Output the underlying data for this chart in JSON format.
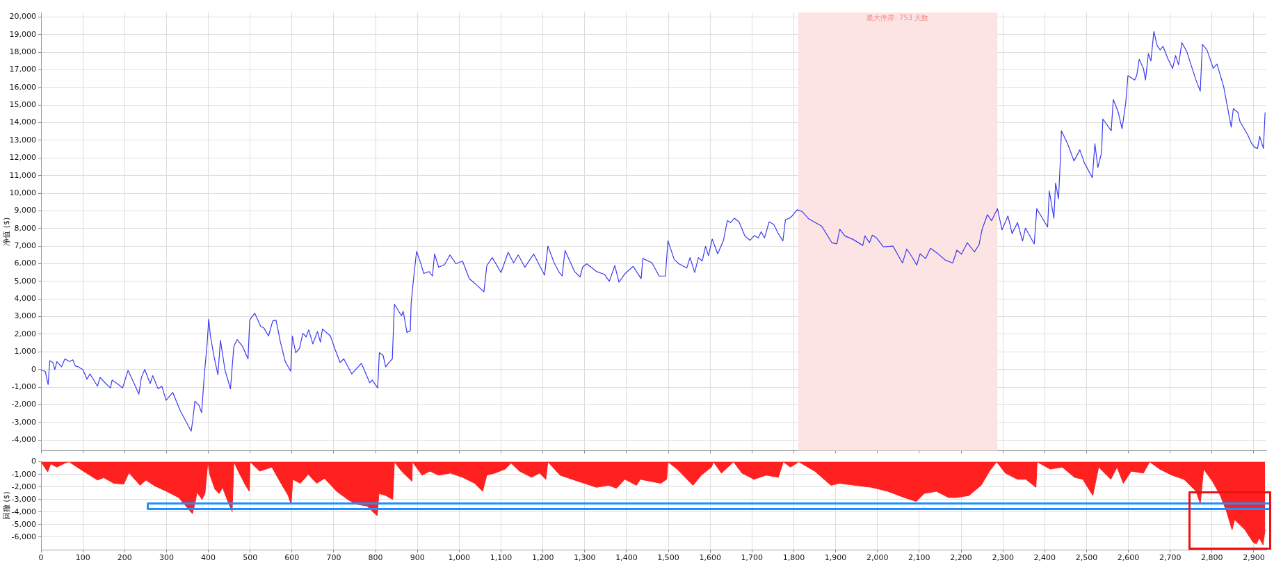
{
  "chart_data": [
    {
      "type": "line",
      "ylabel": "净值 ($)",
      "color": "#3a3af0",
      "marker": "none",
      "line_style": "solid",
      "legend": false,
      "grid": true,
      "tick_labels": "y",
      "x": [
        0,
        10,
        17,
        21,
        28,
        33,
        38,
        49,
        57,
        68,
        76,
        82,
        89,
        100,
        110,
        117,
        135,
        141,
        153,
        166,
        170,
        185,
        195,
        208,
        219,
        234,
        240,
        248,
        261,
        267,
        280,
        289,
        299,
        315,
        333,
        359,
        363,
        368,
        378,
        384,
        391,
        397,
        401,
        405,
        414,
        423,
        429,
        440,
        453,
        461,
        469,
        482,
        495,
        499,
        511,
        525,
        533,
        544,
        554,
        562,
        572,
        584,
        597,
        601,
        609,
        618,
        626,
        634,
        640,
        650,
        661,
        668,
        673,
        692,
        703,
        715,
        724,
        743,
        766,
        786,
        792,
        805,
        809,
        818,
        824,
        832,
        840,
        845,
        854,
        862,
        866,
        875,
        883,
        885,
        891,
        898,
        909,
        915,
        928,
        936,
        941,
        951,
        965,
        978,
        992,
        1008,
        1024,
        1039,
        1059,
        1066,
        1079,
        1100,
        1117,
        1130,
        1141,
        1157,
        1178,
        1204,
        1212,
        1227,
        1238,
        1246,
        1253,
        1276,
        1289,
        1295,
        1305,
        1329,
        1347,
        1359,
        1372,
        1382,
        1397,
        1416,
        1435,
        1439,
        1461,
        1478,
        1493,
        1499,
        1514,
        1525,
        1544,
        1552,
        1563,
        1572,
        1581,
        1589,
        1596,
        1605,
        1618,
        1632,
        1641,
        1649,
        1658,
        1669,
        1683,
        1695,
        1706,
        1715,
        1722,
        1730,
        1741,
        1752,
        1762,
        1774,
        1780,
        1790,
        1796,
        1808,
        1820,
        1836,
        1867,
        1891,
        1903,
        1910,
        1922,
        1942,
        1965,
        1970,
        1981,
        1988,
        1998,
        2014,
        2037,
        2060,
        2070,
        2083,
        2094,
        2102,
        2115,
        2127,
        2144,
        2162,
        2180,
        2190,
        2201,
        2215,
        2232,
        2243,
        2250,
        2263,
        2273,
        2287,
        2298,
        2312,
        2322,
        2335,
        2347,
        2354,
        2375,
        2381,
        2407,
        2411,
        2422,
        2426,
        2433,
        2437,
        2440,
        2455,
        2470,
        2484,
        2495,
        2514,
        2520,
        2527,
        2536,
        2539,
        2559,
        2564,
        2576,
        2585,
        2594,
        2599,
        2615,
        2620,
        2626,
        2636,
        2641,
        2648,
        2654,
        2661,
        2669,
        2676,
        2683,
        2695,
        2706,
        2713,
        2720,
        2728,
        2740,
        2761,
        2772,
        2777,
        2788,
        2803,
        2812,
        2828,
        2846,
        2851,
        2862,
        2867,
        2885,
        2895,
        2902,
        2909,
        2914,
        2923,
        2927
      ],
      "values": [
        -50,
        -100,
        -850,
        500,
        400,
        0,
        450,
        150,
        600,
        450,
        550,
        200,
        150,
        0,
        -550,
        -250,
        -950,
        -450,
        -750,
        -1050,
        -600,
        -850,
        -1050,
        -50,
        -600,
        -1400,
        -450,
        0,
        -800,
        -350,
        -1100,
        -950,
        -1750,
        -1300,
        -2350,
        -3500,
        -2850,
        -1800,
        -2050,
        -2450,
        -150,
        1400,
        2850,
        1900,
        700,
        -300,
        1650,
        -50,
        -1100,
        1300,
        1700,
        1300,
        600,
        2800,
        3200,
        2450,
        2350,
        1900,
        2750,
        2800,
        1600,
        450,
        -100,
        1900,
        950,
        1200,
        2050,
        1850,
        2250,
        1450,
        2150,
        1550,
        2300,
        1900,
        1150,
        400,
        600,
        -250,
        350,
        -750,
        -600,
        -1050,
        950,
        800,
        150,
        400,
        600,
        3700,
        3350,
        3050,
        3300,
        2100,
        2200,
        3750,
        5200,
        6700,
        5950,
        5450,
        5550,
        5300,
        6550,
        5800,
        5950,
        6500,
        6000,
        6150,
        5150,
        4850,
        4400,
        5900,
        6350,
        5500,
        6650,
        6050,
        6500,
        5800,
        6550,
        5350,
        7000,
        6050,
        5550,
        5300,
        6750,
        5550,
        5250,
        5800,
        6000,
        5550,
        5400,
        5000,
        5900,
        4950,
        5450,
        5850,
        5150,
        6300,
        6050,
        5300,
        5300,
        7300,
        6250,
        6000,
        5750,
        6350,
        5500,
        6350,
        6150,
        6980,
        6460,
        7400,
        6560,
        7330,
        8440,
        8330,
        8580,
        8375,
        7580,
        7330,
        7600,
        7460,
        7810,
        7460,
        8375,
        8230,
        7750,
        7290,
        8500,
        8580,
        8710,
        9060,
        8960,
        8540,
        8125,
        7190,
        7125,
        7960,
        7580,
        7375,
        7040,
        7580,
        7190,
        7625,
        7460,
        6960,
        7000,
        6040,
        6830,
        6375,
        5920,
        6560,
        6290,
        6875,
        6580,
        6210,
        6040,
        6770,
        6540,
        7190,
        6670,
        7080,
        7920,
        8790,
        8440,
        9125,
        7920,
        8710,
        7710,
        8330,
        7290,
        8020,
        7125,
        9125,
        8080,
        10125,
        8580,
        10580,
        9690,
        11670,
        13540,
        12790,
        11830,
        12460,
        11710,
        10875,
        12810,
        11460,
        12290,
        14210,
        13540,
        15310,
        14580,
        13650,
        15170,
        16670,
        16420,
        16670,
        17600,
        17080,
        16420,
        17920,
        17500,
        19170,
        18375,
        18125,
        18330,
        17600,
        17080,
        17810,
        17290,
        18540,
        18020,
        16460,
        15790,
        18440,
        18125,
        17080,
        17330,
        16040,
        13750,
        14790,
        14580,
        14060,
        13330,
        12810,
        12600,
        12540,
        13230,
        12540,
        14580
      ],
      "xlim": [
        0,
        2930
      ],
      "xticks": [
        0,
        100,
        200,
        300,
        400,
        500,
        600,
        700,
        800,
        900,
        1000,
        1100,
        1200,
        1300,
        1400,
        1500,
        1600,
        1700,
        1800,
        1900,
        2000,
        2100,
        2200,
        2300,
        2400,
        2500,
        2600,
        2700,
        2800,
        2900
      ],
      "ylim": [
        -4600,
        20250
      ],
      "yticks": [
        {
          "value": -4000,
          "label": "-4,000"
        },
        {
          "value": -3000,
          "label": "-3,000"
        },
        {
          "value": -2000,
          "label": "-2,000"
        },
        {
          "value": -1000,
          "label": "-1,000"
        },
        0,
        {
          "value": 1000,
          "label": "1,000"
        },
        {
          "value": 2000,
          "label": "2,000"
        },
        {
          "value": 3000,
          "label": "3,000"
        },
        {
          "value": 4000,
          "label": "4,000"
        },
        {
          "value": 5000,
          "label": "5,000"
        },
        {
          "value": 6000,
          "label": "6,000"
        },
        {
          "value": 7000,
          "label": "7,000"
        },
        {
          "value": 8000,
          "label": "8,000"
        },
        {
          "value": 9000,
          "label": "9,000"
        },
        {
          "value": 10000,
          "label": "10,000"
        },
        {
          "value": 11000,
          "label": "11,000"
        },
        {
          "value": 12000,
          "label": "12,000"
        },
        {
          "value": 13000,
          "label": "13,000"
        },
        {
          "value": 14000,
          "label": "14,000"
        },
        {
          "value": 15000,
          "label": "15,000"
        },
        {
          "value": 16000,
          "label": "16,000"
        },
        {
          "value": 17000,
          "label": "17,000"
        },
        {
          "value": 18000,
          "label": "18,000"
        },
        {
          "value": 19000,
          "label": "19,000"
        },
        {
          "value": 20000,
          "label": "20,000"
        }
      ],
      "bands": [
        {
          "axis": "x",
          "from": 1810,
          "to": 2287,
          "label": "最大停滞: 753 天数",
          "color": "#fde4e4"
        }
      ]
    },
    {
      "type": "area",
      "ylabel": "回撤 ($)",
      "color": "#ff2020",
      "marker": "none",
      "legend": false,
      "grid": true,
      "x": [
        0,
        16,
        23,
        38,
        57,
        67,
        101,
        135,
        150,
        174,
        198,
        210,
        237,
        251,
        271,
        300,
        329,
        348,
        362,
        368,
        373,
        385,
        392,
        399,
        404,
        416,
        426,
        434,
        445,
        457,
        461,
        474,
        489,
        498,
        500,
        523,
        552,
        571,
        591,
        598,
        602,
        620,
        639,
        659,
        678,
        707,
        736,
        756,
        780,
        793,
        804,
        808,
        824,
        841,
        845,
        862,
        877,
        887,
        888,
        911,
        930,
        950,
        979,
        1008,
        1037,
        1056,
        1066,
        1085,
        1110,
        1124,
        1144,
        1173,
        1192,
        1207,
        1212,
        1241,
        1270,
        1299,
        1328,
        1357,
        1376,
        1396,
        1424,
        1433,
        1482,
        1496,
        1499,
        1521,
        1559,
        1579,
        1603,
        1608,
        1627,
        1656,
        1676,
        1705,
        1734,
        1763,
        1775,
        1792,
        1812,
        1850,
        1889,
        1909,
        1947,
        1986,
        2025,
        2064,
        2093,
        2112,
        2141,
        2170,
        2190,
        2219,
        2248,
        2268,
        2285,
        2306,
        2335,
        2355,
        2379,
        2382,
        2413,
        2442,
        2471,
        2491,
        2515,
        2529,
        2558,
        2573,
        2588,
        2607,
        2636,
        2651,
        2675,
        2704,
        2733,
        2762,
        2772,
        2780,
        2801,
        2820,
        2835,
        2848,
        2854,
        2879,
        2898,
        2906,
        2913,
        2922,
        2927
      ],
      "values": [
        0,
        -800,
        -160,
        -420,
        -100,
        0,
        -740,
        -1450,
        -1260,
        -1710,
        -1770,
        -870,
        -1870,
        -1450,
        -1900,
        -2350,
        -2840,
        -3580,
        -4130,
        -3320,
        -2420,
        -3000,
        -2520,
        0,
        -1060,
        -2190,
        -2520,
        -2030,
        -3000,
        -3970,
        0,
        -900,
        -1870,
        -2350,
        0,
        -740,
        -420,
        -1550,
        -2680,
        -3390,
        -1390,
        -1710,
        -1000,
        -1710,
        -1320,
        -2350,
        -3060,
        -3390,
        -3520,
        -3970,
        -4290,
        -2520,
        -2680,
        -3000,
        0,
        -740,
        -1230,
        -1550,
        0,
        -1060,
        -740,
        -1060,
        -900,
        -1230,
        -1710,
        -2350,
        -1060,
        -900,
        -580,
        -100,
        -740,
        -1230,
        -900,
        -1390,
        0,
        -1060,
        -1390,
        -1710,
        -2030,
        -1870,
        -2100,
        -1390,
        -1870,
        -1390,
        -1710,
        -1390,
        0,
        -580,
        -1870,
        -1060,
        -420,
        0,
        -900,
        0,
        -900,
        -1390,
        -1060,
        -1230,
        0,
        -420,
        0,
        -740,
        -1870,
        -1710,
        -1870,
        -2030,
        -2350,
        -2840,
        -3160,
        -2520,
        -2350,
        -2840,
        -2840,
        -2680,
        -1870,
        -740,
        0,
        -900,
        -1390,
        -1390,
        -2030,
        0,
        -580,
        -420,
        -1230,
        -1390,
        -2680,
        -420,
        -1390,
        -420,
        -1710,
        -740,
        -900,
        0,
        -580,
        -1060,
        -1390,
        -2350,
        -3320,
        -580,
        -1550,
        -2680,
        -3970,
        -5420,
        -4610,
        -5420,
        -6390,
        -6550,
        -6060,
        -6610,
        -5420
      ],
      "xlim": [
        0,
        2930
      ],
      "xticks": [
        0,
        100,
        200,
        300,
        400,
        500,
        600,
        700,
        800,
        900,
        {
          "value": 1000,
          "label": "1,000"
        },
        {
          "value": 1100,
          "label": "1,100"
        },
        {
          "value": 1200,
          "label": "1,200"
        },
        {
          "value": 1300,
          "label": "1,300"
        },
        {
          "value": 1400,
          "label": "1,400"
        },
        {
          "value": 1500,
          "label": "1,500"
        },
        {
          "value": 1600,
          "label": "1,600"
        },
        {
          "value": 1700,
          "label": "1,700"
        },
        {
          "value": 1800,
          "label": "1,800"
        },
        {
          "value": 1900,
          "label": "1,900"
        },
        {
          "value": 2000,
          "label": "2,000"
        },
        {
          "value": 2100,
          "label": "2,100"
        },
        {
          "value": 2200,
          "label": "2,200"
        },
        {
          "value": 2300,
          "label": "2,300"
        },
        {
          "value": 2400,
          "label": "2,400"
        },
        {
          "value": 2500,
          "label": "2,500"
        },
        {
          "value": 2600,
          "label": "2,600"
        },
        {
          "value": 2700,
          "label": "2,700"
        },
        {
          "value": 2800,
          "label": "2,800"
        },
        {
          "value": 2900,
          "label": "2,900"
        }
      ],
      "ylim": [
        -7000,
        0
      ],
      "yticks": [
        {
          "value": -6000,
          "label": "-6,000"
        },
        {
          "value": -5000,
          "label": "-5,000"
        },
        {
          "value": -4000,
          "label": "-4,000"
        },
        {
          "value": -3000,
          "label": "-3,000"
        },
        {
          "value": -2000,
          "label": "-2,000"
        },
        {
          "value": -1000,
          "label": "-1,000"
        },
        0
      ]
    }
  ]
}
